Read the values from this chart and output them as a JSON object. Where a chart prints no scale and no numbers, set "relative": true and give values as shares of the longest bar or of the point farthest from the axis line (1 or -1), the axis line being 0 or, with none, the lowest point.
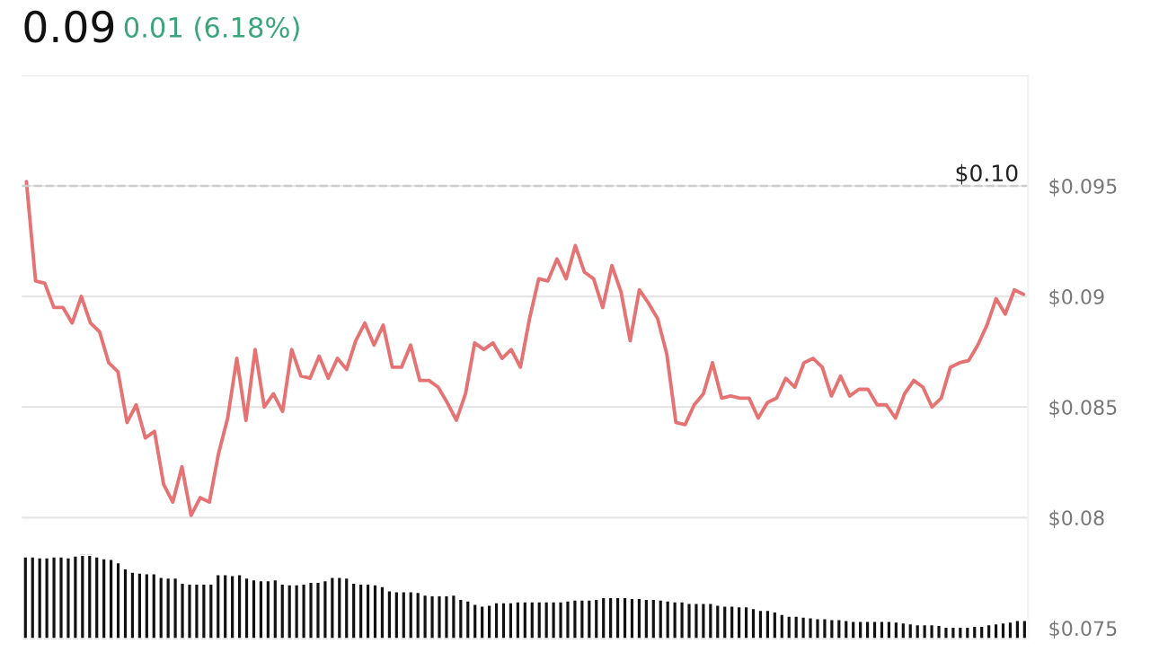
{
  "chart_data": [
    {
      "type": "line",
      "title": "0.09",
      "subtitle": "0.01 (6.18%)",
      "categories": [
        null,
        null,
        null,
        null,
        null,
        null,
        null,
        null,
        null,
        null,
        null,
        null,
        null,
        null,
        null,
        null,
        null,
        null,
        null,
        null,
        null,
        null,
        null,
        null,
        null,
        null,
        null,
        null,
        null,
        null,
        null,
        null,
        null,
        null,
        null,
        null,
        null,
        null,
        null,
        null,
        null,
        null,
        null,
        null,
        null,
        null,
        null,
        null,
        null,
        null,
        null,
        null,
        null,
        null,
        null,
        null,
        null,
        null,
        null,
        null,
        null,
        null,
        null,
        null,
        null,
        null,
        null,
        null,
        null,
        null,
        null,
        null,
        null,
        null,
        null,
        null,
        null,
        null,
        null,
        null,
        null,
        null,
        null,
        null,
        null,
        null,
        null,
        null,
        null,
        null,
        null,
        null,
        null,
        null,
        null,
        null,
        null,
        null,
        null,
        null,
        null,
        null,
        null,
        null,
        null,
        null,
        null,
        null,
        null,
        null
      ],
      "series": [
        {
          "color": "#e57373",
          "values": [
            0.0952,
            0.0907,
            0.0906,
            0.0895,
            0.0895,
            0.0888,
            0.09,
            0.0888,
            0.0884,
            0.087,
            0.0866,
            0.0843,
            0.0851,
            0.0836,
            0.0839,
            0.0815,
            0.0807,
            0.0823,
            0.0801,
            0.0809,
            0.0807,
            0.0829,
            0.0845,
            0.0872,
            0.0844,
            0.0876,
            0.085,
            0.0856,
            0.0848,
            0.0876,
            0.0864,
            0.0863,
            0.0873,
            0.0863,
            0.0872,
            0.0867,
            0.088,
            0.0888,
            0.0878,
            0.0887,
            0.0868,
            0.0868,
            0.0878,
            0.0862,
            0.0862,
            0.0859,
            0.0852,
            0.0844,
            0.0856,
            0.0879,
            0.0876,
            0.0879,
            0.0872,
            0.0876,
            0.0868,
            0.089,
            0.0908,
            0.0907,
            0.0917,
            0.0908,
            0.0923,
            0.0911,
            0.0908,
            0.0895,
            0.0914,
            0.0902,
            0.088,
            0.0903,
            0.0897,
            0.089,
            0.0874,
            0.0843,
            0.0842,
            0.0851,
            0.0856,
            0.087,
            0.0854,
            0.0855,
            0.0854,
            0.0854,
            0.0845,
            0.0852,
            0.0854,
            0.0863,
            0.0859,
            0.087,
            0.0872,
            0.0868,
            0.0855,
            0.0864,
            0.0855,
            0.0858,
            0.0858,
            0.0851,
            0.0851,
            0.0845,
            0.0856,
            0.0862,
            0.0859,
            0.085,
            0.0854,
            0.0868,
            0.087,
            0.0871,
            0.0878,
            0.0887,
            0.0899,
            0.0892,
            0.0903,
            0.0901
          ]
        }
      ],
      "ylim": [
        0.0745,
        0.1
      ],
      "yticks": [
        {
          "value": 0.075,
          "label": "$0.075"
        },
        {
          "value": 0.08,
          "label": "$0.08"
        },
        {
          "value": 0.085,
          "label": "$0.085"
        },
        {
          "value": 0.09,
          "label": "$0.09"
        },
        {
          "value": 0.095,
          "label": "$0.095"
        },
        {
          "value": 0.1,
          "label": null
        }
      ],
      "ref_lines": [
        {
          "axis": "y",
          "value": 0.095,
          "label": "$0.10",
          "color": "#cccccc",
          "line_style": "dashed"
        }
      ],
      "grid": "y",
      "tick_labels": "y",
      "marker": "none",
      "line_style": "solid"
    },
    {
      "type": "bar",
      "relative": true,
      "tick_labels": false,
      "categories": [
        null,
        null,
        null,
        null,
        null,
        null,
        null,
        null,
        null,
        null,
        null,
        null,
        null,
        null,
        null,
        null,
        null,
        null,
        null,
        null,
        null,
        null,
        null,
        null,
        null,
        null,
        null,
        null,
        null,
        null,
        null,
        null,
        null,
        null,
        null,
        null,
        null,
        null,
        null,
        null,
        null,
        null,
        null,
        null,
        null,
        null,
        null,
        null,
        null,
        null,
        null,
        null,
        null,
        null,
        null,
        null,
        null,
        null,
        null,
        null,
        null,
        null,
        null,
        null,
        null,
        null,
        null,
        null,
        null,
        null,
        null,
        null,
        null,
        null,
        null,
        null,
        null,
        null,
        null,
        null,
        null,
        null,
        null,
        null,
        null,
        null,
        null,
        null,
        null,
        null,
        null,
        null,
        null,
        null,
        null,
        null,
        null,
        null,
        null,
        null,
        null,
        null,
        null,
        null,
        null,
        null,
        null,
        null,
        null,
        null,
        null,
        null,
        null,
        null,
        null,
        null,
        null,
        null,
        null,
        null,
        null,
        null,
        null,
        null,
        null,
        null,
        null,
        null,
        null,
        null,
        null,
        null,
        null,
        null,
        null,
        null,
        null,
        null,
        null,
        null,
        null
      ],
      "series": [
        {
          "color": "#111111",
          "values": [
            0.98,
            0.98,
            0.97,
            0.97,
            0.98,
            0.98,
            0.97,
            0.99,
            1.0,
            1.0,
            0.98,
            0.96,
            0.95,
            0.91,
            0.84,
            0.8,
            0.79,
            0.78,
            0.78,
            0.74,
            0.73,
            0.73,
            0.67,
            0.66,
            0.66,
            0.66,
            0.66,
            0.77,
            0.77,
            0.76,
            0.77,
            0.73,
            0.71,
            0.7,
            0.7,
            0.71,
            0.66,
            0.65,
            0.65,
            0.66,
            0.68,
            0.68,
            0.7,
            0.74,
            0.74,
            0.73,
            0.67,
            0.66,
            0.66,
            0.65,
            0.63,
            0.58,
            0.57,
            0.57,
            0.57,
            0.56,
            0.53,
            0.52,
            0.52,
            0.52,
            0.53,
            0.48,
            0.46,
            0.42,
            0.4,
            0.41,
            0.44,
            0.44,
            0.44,
            0.45,
            0.45,
            0.45,
            0.45,
            0.45,
            0.45,
            0.45,
            0.46,
            0.47,
            0.47,
            0.47,
            0.48,
            0.5,
            0.5,
            0.5,
            0.5,
            0.49,
            0.49,
            0.48,
            0.48,
            0.47,
            0.46,
            0.45,
            0.45,
            0.43,
            0.43,
            0.43,
            0.43,
            0.41,
            0.4,
            0.4,
            0.39,
            0.39,
            0.37,
            0.35,
            0.35,
            0.33,
            0.3,
            0.28,
            0.28,
            0.27,
            0.26,
            0.25,
            0.25,
            0.24,
            0.24,
            0.23,
            0.22,
            0.22,
            0.22,
            0.22,
            0.22,
            0.22,
            0.21,
            0.2,
            0.19,
            0.18,
            0.18,
            0.18,
            0.17,
            0.15,
            0.15,
            0.15,
            0.15,
            0.16,
            0.16,
            0.18,
            0.19,
            0.2,
            0.21,
            0.23,
            0.23
          ]
        }
      ]
    }
  ]
}
